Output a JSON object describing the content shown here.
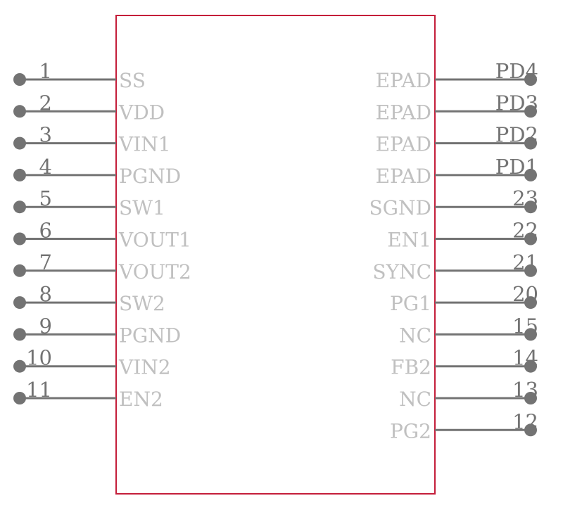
{
  "colors": {
    "body_outline": "#c41e3a",
    "pin": "#737373",
    "pin_name": "#c0c0c0"
  },
  "left_pins": [
    {
      "number": "1",
      "name": "SS"
    },
    {
      "number": "2",
      "name": "VDD"
    },
    {
      "number": "3",
      "name": "VIN1"
    },
    {
      "number": "4",
      "name": "PGND"
    },
    {
      "number": "5",
      "name": "SW1"
    },
    {
      "number": "6",
      "name": "VOUT1"
    },
    {
      "number": "7",
      "name": "VOUT2"
    },
    {
      "number": "8",
      "name": "SW2"
    },
    {
      "number": "9",
      "name": "PGND"
    },
    {
      "number": "10",
      "name": "VIN2"
    },
    {
      "number": "11",
      "name": "EN2"
    }
  ],
  "right_pins": [
    {
      "number": "PD4",
      "name": "EPAD"
    },
    {
      "number": "PD3",
      "name": "EPAD"
    },
    {
      "number": "PD2",
      "name": "EPAD"
    },
    {
      "number": "PD1",
      "name": "EPAD"
    },
    {
      "number": "23",
      "name": "SGND"
    },
    {
      "number": "22",
      "name": "EN1"
    },
    {
      "number": "21",
      "name": "SYNC"
    },
    {
      "number": "20",
      "name": "PG1"
    },
    {
      "number": "15",
      "name": "NC"
    },
    {
      "number": "14",
      "name": "FB2"
    },
    {
      "number": "13",
      "name": "NC"
    },
    {
      "number": "12",
      "name": "PG2"
    }
  ]
}
